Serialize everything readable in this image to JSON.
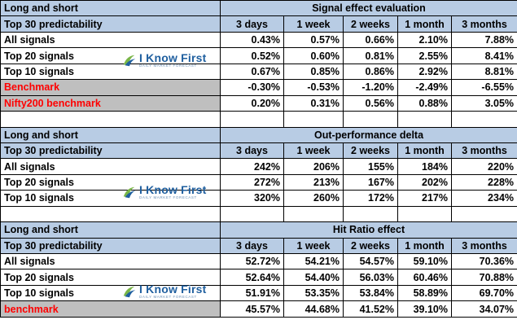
{
  "col_headers": [
    "3 days",
    "1 week",
    "2 weeks",
    "1 month",
    "3 months"
  ],
  "logo": {
    "brand": "I Know First",
    "tagline": "DAILY MARKET FORECAST"
  },
  "sections": [
    {
      "left_title": "Long and short",
      "title": "Signal effect evaluation",
      "subtitle": "Top 30 predictability",
      "rows": [
        {
          "label": "All signals",
          "values": [
            "0.43%",
            "0.57%",
            "0.66%",
            "2.10%",
            "7.88%"
          ]
        },
        {
          "label": "Top 20 signals",
          "values": [
            "0.52%",
            "0.60%",
            "0.81%",
            "2.55%",
            "8.41%"
          ]
        },
        {
          "label": "Top 10 signals",
          "values": [
            "0.67%",
            "0.85%",
            "0.86%",
            "2.92%",
            "8.81%"
          ]
        },
        {
          "label": "Benchmark",
          "values": [
            "-0.30%",
            "-0.53%",
            "-1.20%",
            "-2.49%",
            "-6.55%"
          ]
        },
        {
          "label": "Nifty200 benchmark",
          "values": [
            "0.20%",
            "0.31%",
            "0.56%",
            "0.88%",
            "3.05%"
          ]
        }
      ]
    },
    {
      "left_title": "Long and short",
      "title": "Out-performance delta",
      "subtitle": "Top 30 predictability",
      "rows": [
        {
          "label": "All signals",
          "values": [
            "242%",
            "206%",
            "155%",
            "184%",
            "220%"
          ]
        },
        {
          "label": "Top 20 signals",
          "values": [
            "272%",
            "213%",
            "167%",
            "202%",
            "228%"
          ]
        },
        {
          "label": "Top 10 signals",
          "values": [
            "320%",
            "260%",
            "172%",
            "217%",
            "234%"
          ]
        }
      ]
    },
    {
      "left_title": "Long and short",
      "title": "Hit Ratio effect",
      "subtitle": "Top 30 predictability",
      "rows": [
        {
          "label": "All signals",
          "values": [
            "52.72%",
            "54.21%",
            "54.57%",
            "59.10%",
            "70.36%"
          ]
        },
        {
          "label": "Top 20 signals",
          "values": [
            "52.64%",
            "54.40%",
            "56.03%",
            "60.46%",
            "70.88%"
          ]
        },
        {
          "label": "Top 10 signals",
          "values": [
            "51.91%",
            "53.35%",
            "53.84%",
            "58.89%",
            "69.70%"
          ]
        },
        {
          "label": "benchmark",
          "values": [
            "45.57%",
            "44.68%",
            "41.52%",
            "39.10%",
            "34.07%"
          ]
        }
      ]
    }
  ],
  "colors": {
    "header_fill": "#b8cce4",
    "benchmark_fill": "#bfbfbf",
    "benchmark_text": "#ff0000",
    "logo_blue": "#1f5f9f",
    "logo_green": "#7ab648"
  }
}
